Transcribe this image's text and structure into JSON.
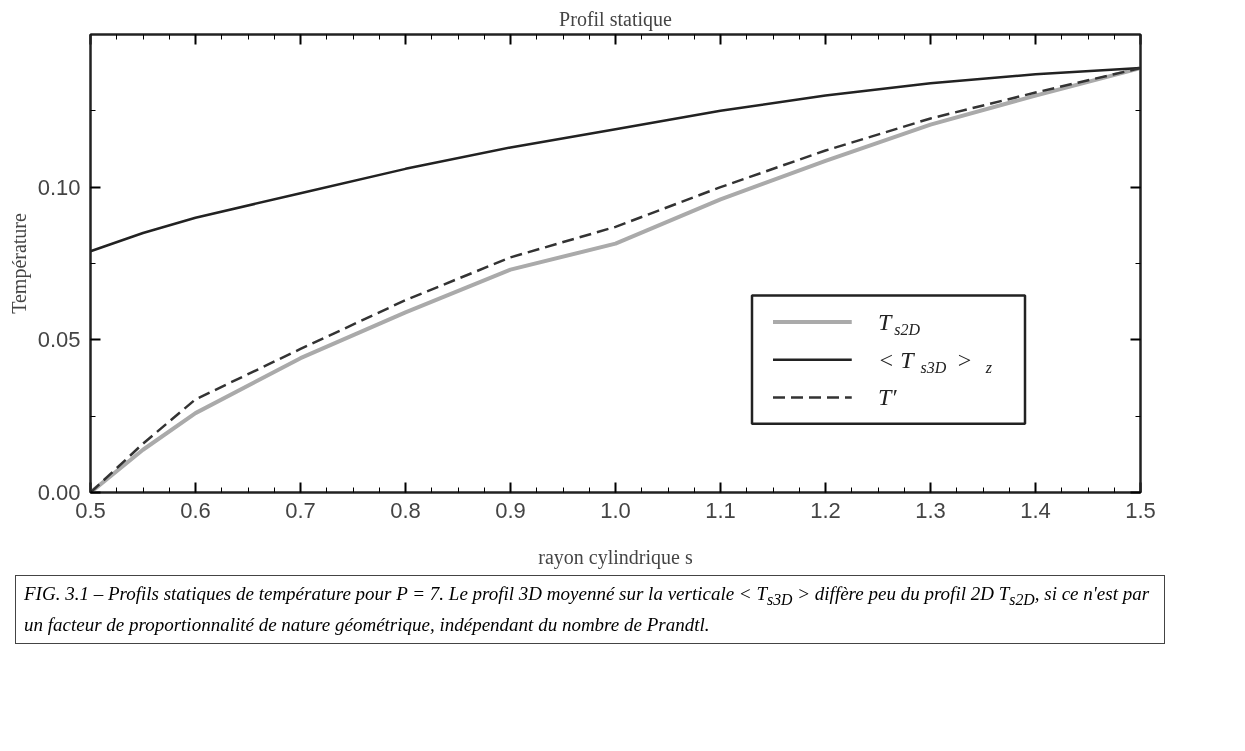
{
  "chart_data": {
    "type": "line",
    "title": "Profil statique",
    "xlabel": "rayon cylindrique s",
    "ylabel": "Température",
    "x": [
      0.5,
      0.55,
      0.6,
      0.7,
      0.8,
      0.9,
      1.0,
      1.1,
      1.2,
      1.3,
      1.4,
      1.5
    ],
    "series": [
      {
        "name": "T$_{s2D}$",
        "color": "#aaaaaa",
        "line_style": "solid",
        "values": [
          0.0,
          0.014,
          0.026,
          0.044,
          0.059,
          0.073,
          0.0815,
          0.096,
          0.1086,
          0.1205,
          0.13,
          0.139
        ]
      },
      {
        "name": "< T$_{s3D}$ >$_{z}$",
        "color": "#222222",
        "line_style": "solid",
        "values": [
          0.079,
          0.085,
          0.09,
          0.098,
          0.106,
          0.113,
          0.119,
          0.125,
          0.13,
          0.134,
          0.137,
          0.139
        ]
      },
      {
        "name": "T′",
        "color": "#333333",
        "line_style": "dashed",
        "values": [
          0.0,
          0.016,
          0.0305,
          0.047,
          0.063,
          0.077,
          0.087,
          0.1,
          0.112,
          0.1225,
          0.131,
          0.139
        ]
      }
    ],
    "xlim": [
      0.5,
      1.5
    ],
    "ylim": [
      0.0,
      0.15
    ],
    "xticks": [
      0.5,
      0.6,
      0.7,
      0.8,
      0.9,
      "1.0",
      1.1,
      1.2,
      1.3,
      1.4,
      1.5
    ],
    "yticks": [
      {
        "value": 0.0,
        "label": "0.00"
      },
      {
        "value": 0.05,
        "label": "0.05"
      },
      {
        "value": 0.1,
        "label": "0.10"
      }
    ],
    "grid": false,
    "legend": "right",
    "marker": "none",
    "annotations": [
      "FIG. 3.1 – Profils statiques de température pour P = 7. Le profil 3D moyenné sur la verticale < T$_{s3D}$ > diffère peu du profil 2D T$_{s2D}$, si ce n'est par un facteur de proportionnalité de nature géométrique, indépendant du nombre de Prandtl."
    ]
  }
}
